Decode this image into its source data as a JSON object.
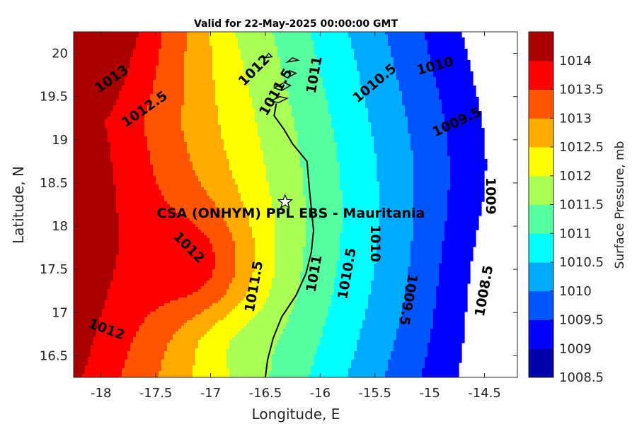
{
  "chart_data": {
    "type": "heatmap",
    "title": "Valid for 22-May-2025 00:00:00 GMT",
    "xlabel": "Longitude, E",
    "ylabel": "Latitude, N",
    "xlim": [
      -18.25,
      -14.2
    ],
    "ylim": [
      16.25,
      20.25
    ],
    "x_ticks": [
      -18,
      -17.5,
      -17,
      -16.5,
      -16,
      -15.5,
      -15,
      -14.5
    ],
    "y_ticks": [
      16.5,
      17,
      17.5,
      18,
      18.5,
      19,
      19.5,
      20
    ],
    "colorbar": {
      "label": "Surface Pressure, mb",
      "levels": [
        1008.5,
        1009,
        1009.5,
        1010,
        1010.5,
        1011,
        1011.5,
        1012,
        1012.5,
        1013,
        1013.5,
        1014
      ],
      "colors": [
        "#0000aa",
        "#0000ff",
        "#0055ff",
        "#00aaff",
        "#00ffff",
        "#55ff9f",
        "#aaff55",
        "#ffff00",
        "#ffaa00",
        "#ff5500",
        "#ff0000",
        "#aa0000"
      ]
    },
    "contour_labels": [
      {
        "text": "1013",
        "lon": -17.9,
        "lat": 19.7
      },
      {
        "text": "1012.5",
        "lon": -17.6,
        "lat": 19.35
      },
      {
        "text": "1012",
        "lon": -16.6,
        "lat": 19.8
      },
      {
        "text": "1011.5",
        "lon": -16.4,
        "lat": 19.55
      },
      {
        "text": "1011",
        "lon": -16.05,
        "lat": 19.75
      },
      {
        "text": "1010.5",
        "lon": -15.5,
        "lat": 19.65
      },
      {
        "text": "1010",
        "lon": -14.95,
        "lat": 19.85
      },
      {
        "text": "1009.5",
        "lon": -14.75,
        "lat": 19.2
      },
      {
        "text": "1009",
        "lon": -14.45,
        "lat": 18.35
      },
      {
        "text": "1012",
        "lon": -17.2,
        "lat": 17.75
      },
      {
        "text": "1011.5",
        "lon": -16.6,
        "lat": 17.3
      },
      {
        "text": "1011",
        "lon": -16.05,
        "lat": 17.45
      },
      {
        "text": "1010.5",
        "lon": -15.75,
        "lat": 17.45
      },
      {
        "text": "1010",
        "lon": -15.5,
        "lat": 17.8
      },
      {
        "text": "1009.5",
        "lon": -15.2,
        "lat": 17.15
      },
      {
        "text": "1008.5",
        "lon": -14.5,
        "lat": 17.25
      },
      {
        "text": "1012",
        "lon": -17.95,
        "lat": 16.8
      }
    ],
    "station": {
      "name": "CSA (ONHYM) PPL EBS  - Mauritania",
      "lon": -16.32,
      "lat": 18.28
    }
  }
}
